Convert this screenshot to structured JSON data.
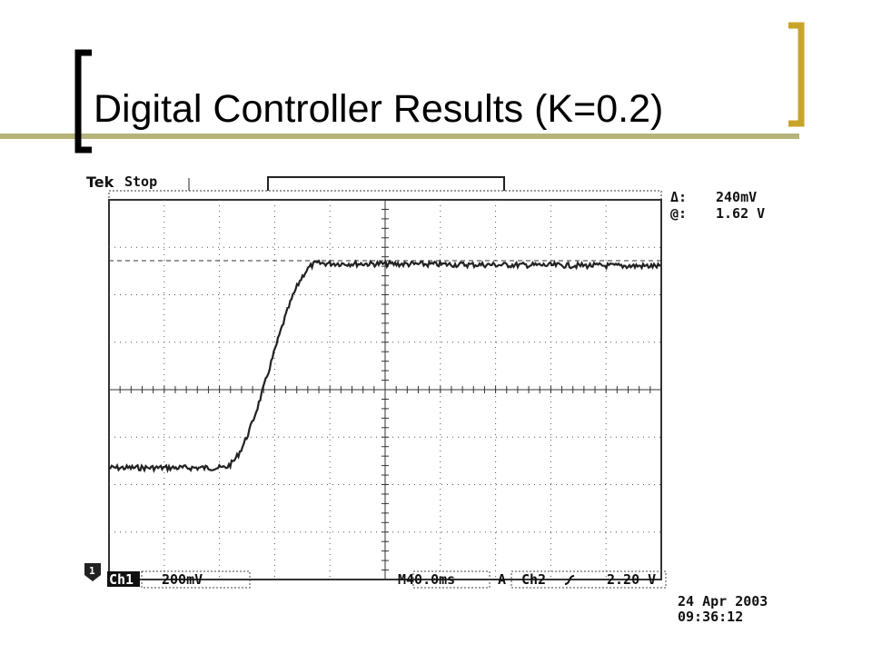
{
  "slide": {
    "title": "Digital Controller Results (K=0.2)"
  },
  "scope": {
    "brand": "Tek",
    "status": "Stop",
    "cursor_delta_label": "Δ:",
    "cursor_delta": "240mV",
    "cursor_at_label": "@:",
    "cursor_at": "1.62 V",
    "channel_marker": "1",
    "channel": "Ch1",
    "scale": "200mV",
    "timebase": "M40.0ms",
    "trigger_label": "A",
    "trigger_source": "Ch2",
    "trigger_level": "2.20 V",
    "date": "24 Apr 2003",
    "time": "09:36:12"
  }
}
